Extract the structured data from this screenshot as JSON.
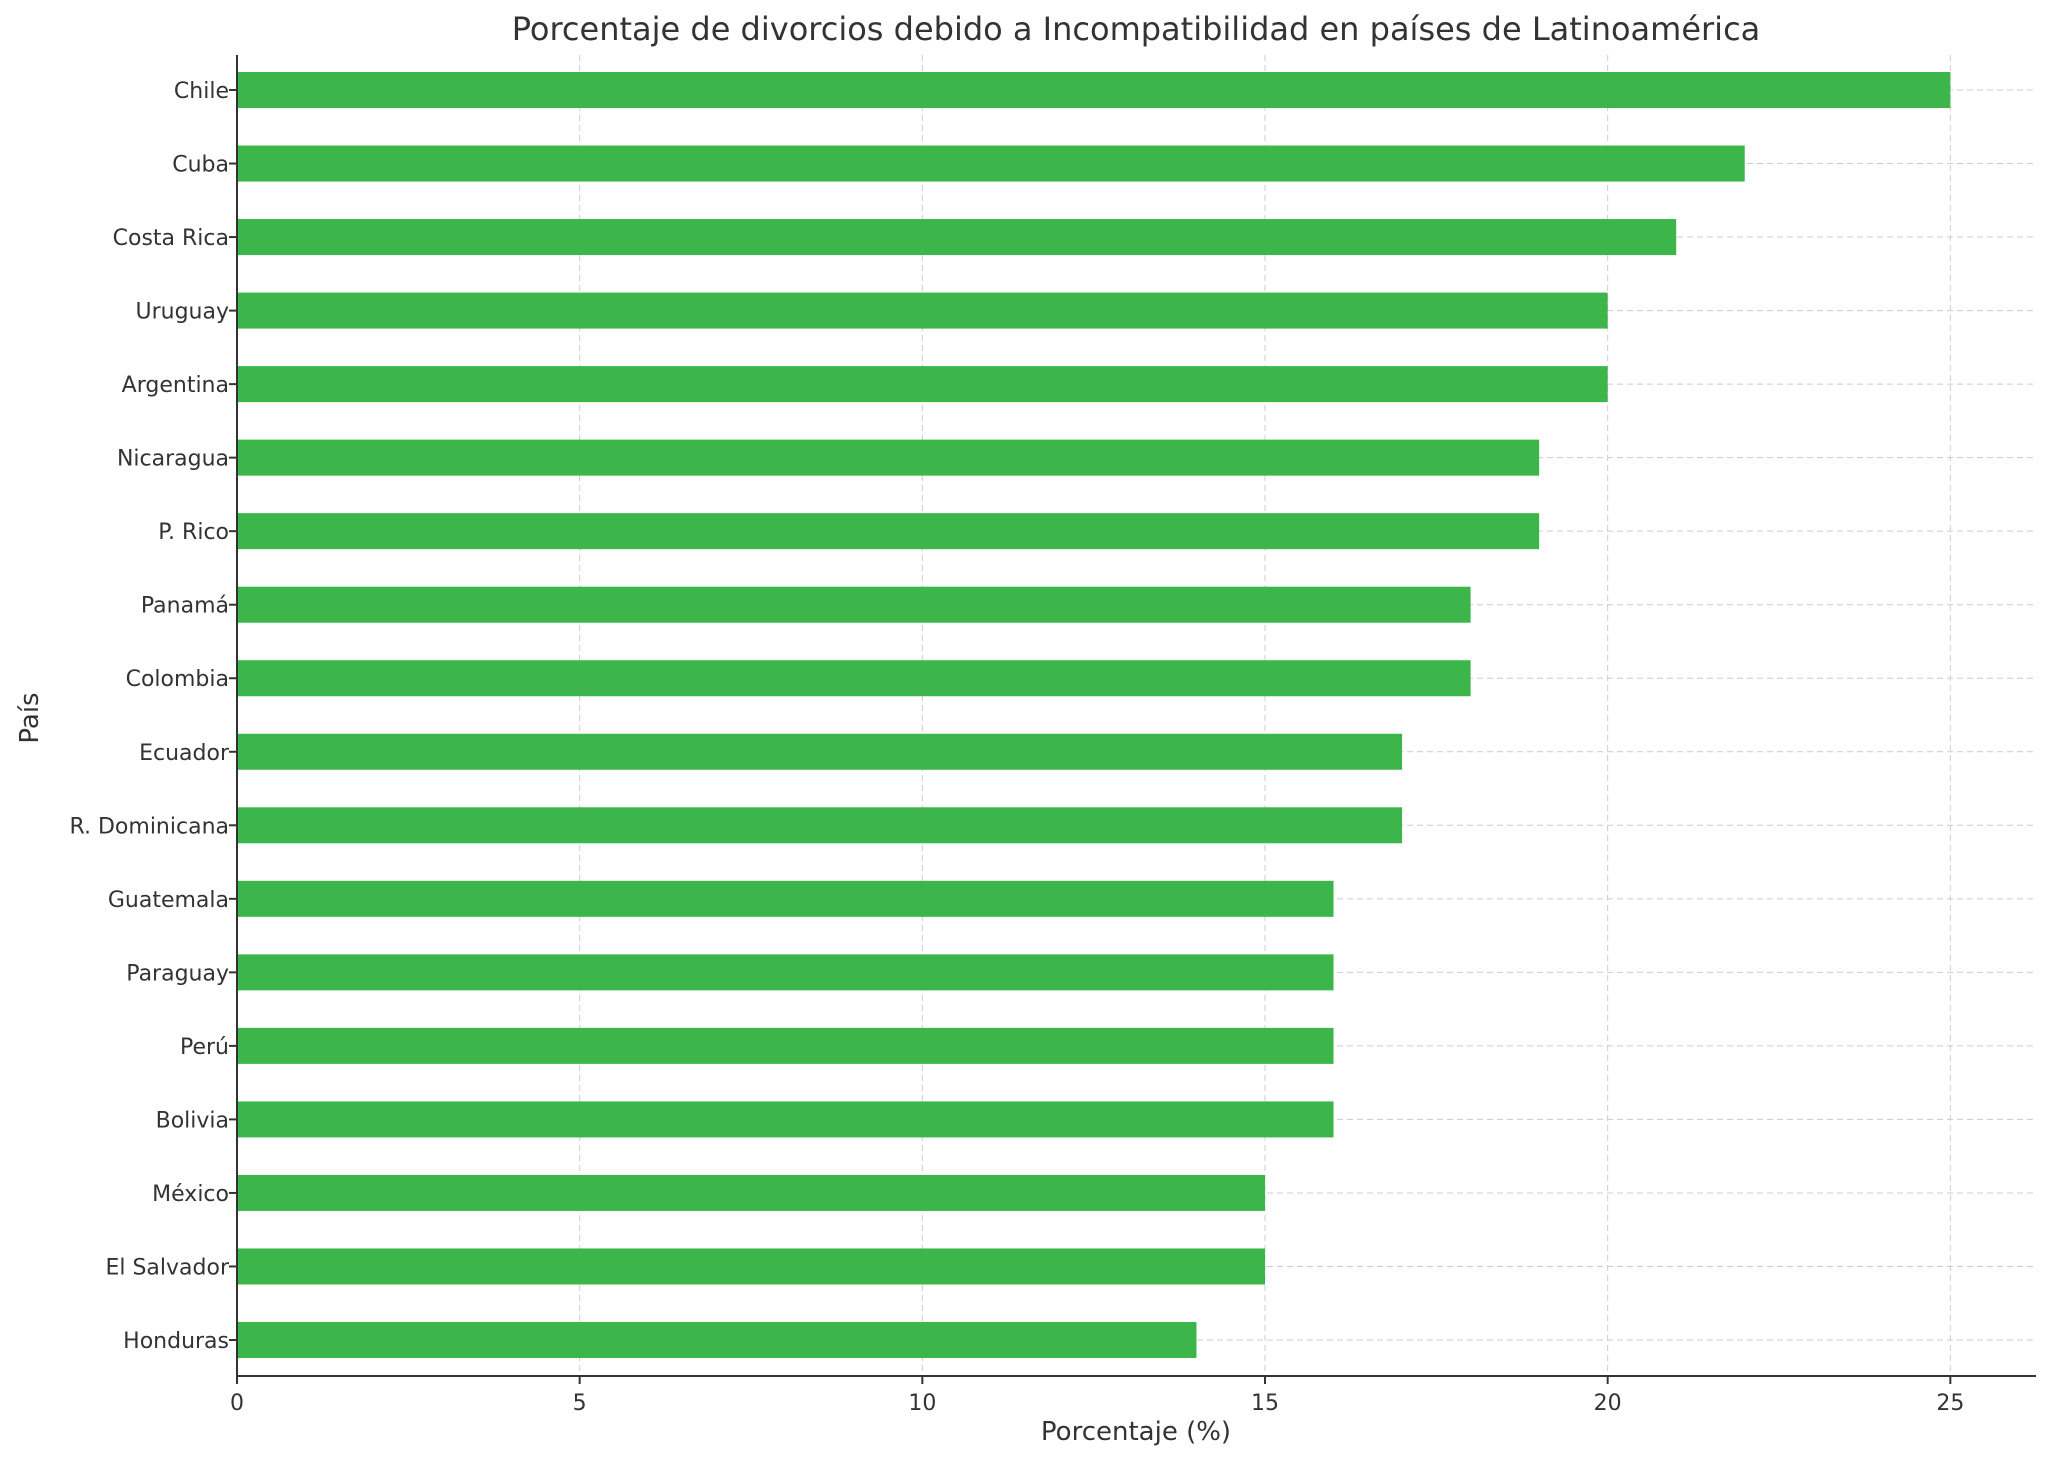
{
  "chart_data": {
    "type": "bar",
    "orientation": "horizontal",
    "title": "Porcentaje de divorcios debido a Incompatibilidad en países de Latinoamérica",
    "xlabel": "Porcentaje (%)",
    "ylabel": "País",
    "categories": [
      "Chile",
      "Cuba",
      "Costa Rica",
      "Uruguay",
      "Argentina",
      "Nicaragua",
      "P. Rico",
      "Panamá",
      "Colombia",
      "Ecuador",
      "R. Dominicana",
      "Guatemala",
      "Paraguay",
      "Perú",
      "Bolivia",
      "México",
      "El Salvador",
      "Honduras"
    ],
    "values": [
      25,
      22,
      21,
      20,
      20,
      19,
      19,
      18,
      18,
      17,
      17,
      16,
      16,
      16,
      16,
      15,
      15,
      14
    ],
    "xlim": [
      0,
      26.25
    ],
    "xticks": [
      0,
      5,
      10,
      15,
      20,
      25
    ],
    "grid": true,
    "bar_color": "#3cb54a"
  }
}
